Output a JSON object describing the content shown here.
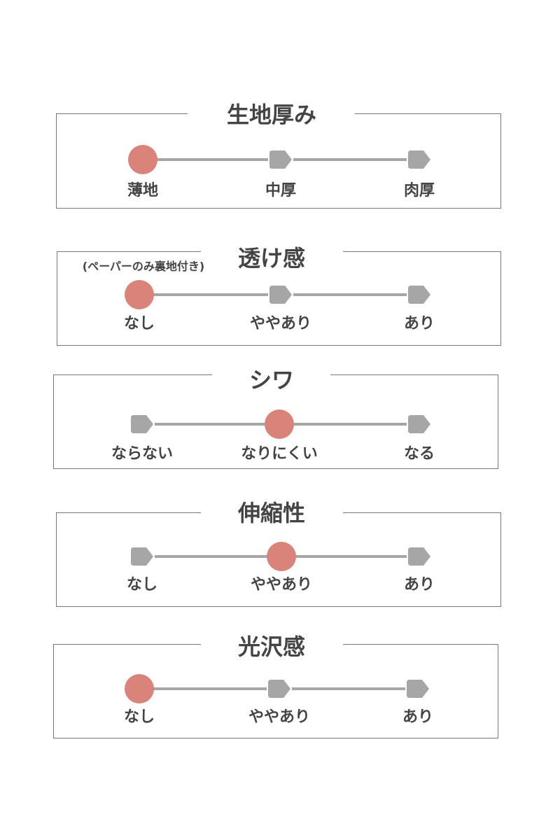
{
  "colors": {
    "selected": "#d9837a",
    "unselected": "#a6a6a6",
    "text": "#444444",
    "border": "#777777"
  },
  "sections": [
    {
      "title": "生地厚み",
      "note": "",
      "options": [
        "薄地",
        "中厚",
        "肉厚"
      ],
      "selected_index": 0
    },
    {
      "title": "透け感",
      "note": "(ペーパーのみ裏地付き)",
      "options": [
        "なし",
        "ややあり",
        "あり"
      ],
      "selected_index": 0
    },
    {
      "title": "シワ",
      "note": "",
      "options": [
        "ならない",
        "なりにくい",
        "なる"
      ],
      "selected_index": 1
    },
    {
      "title": "伸縮性",
      "note": "",
      "options": [
        "なし",
        "ややあり",
        "あり"
      ],
      "selected_index": 1
    },
    {
      "title": "光沢感",
      "note": "",
      "options": [
        "なし",
        "ややあり",
        "あり"
      ],
      "selected_index": 0
    }
  ]
}
